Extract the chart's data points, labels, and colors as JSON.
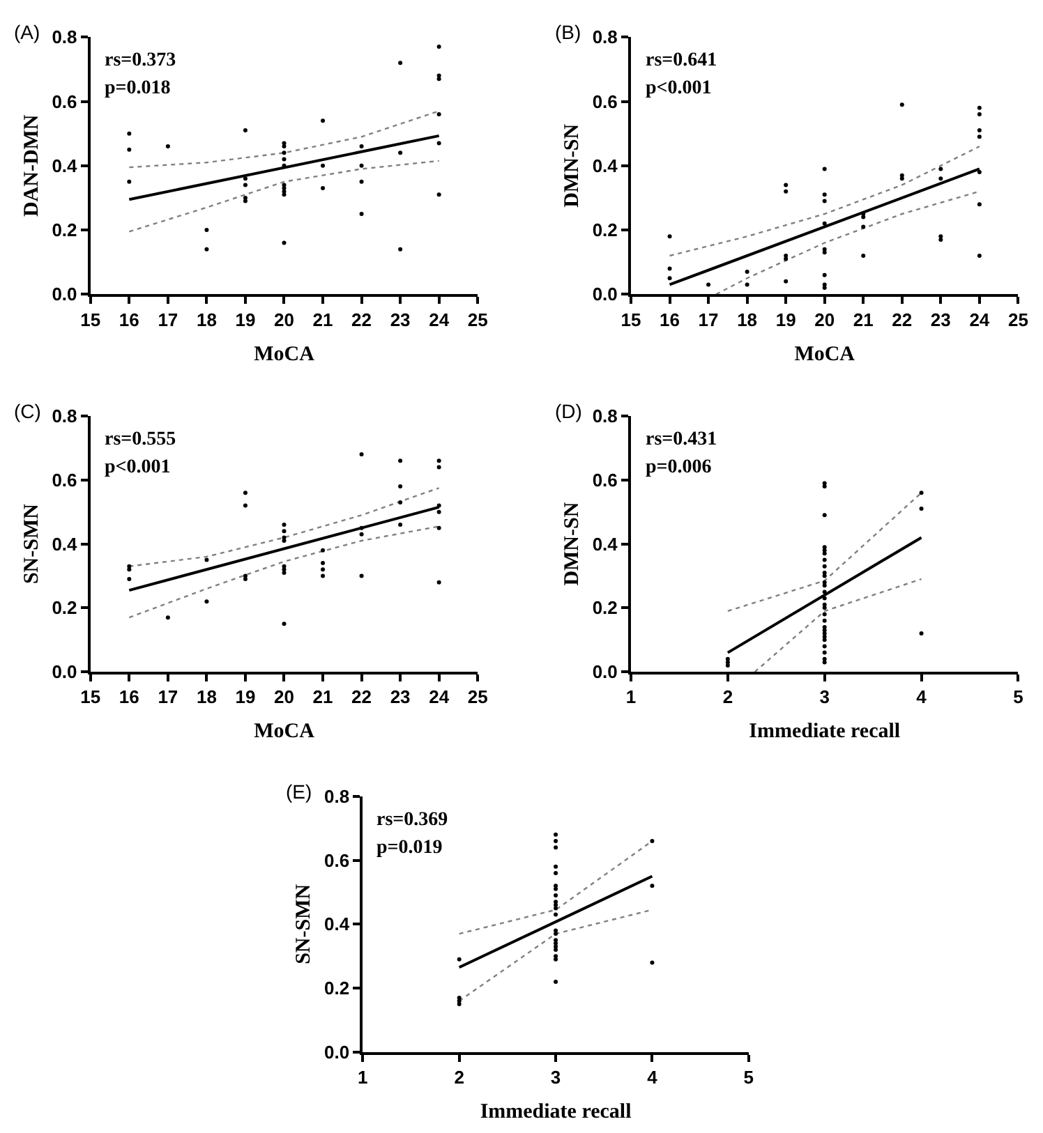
{
  "chart_data": [
    {
      "type": "scatter",
      "title": "(A)",
      "xlabel": "MoCA",
      "ylabel": "DAN-DMN",
      "annotations": [
        "rs=0.373",
        "p=0.018"
      ],
      "xlim": [
        15,
        25
      ],
      "xticks": [
        15,
        16,
        17,
        18,
        19,
        20,
        21,
        22,
        23,
        24,
        25
      ],
      "ylim": [
        0,
        0.8
      ],
      "yticks": [
        {
          "value": 0,
          "label": "0.0"
        },
        {
          "value": 0.2,
          "label": "0.2"
        },
        {
          "value": 0.4,
          "label": "0.4"
        },
        {
          "value": 0.6,
          "label": "0.6"
        },
        {
          "value": 0.8,
          "label": "0.8"
        }
      ],
      "marker": "circle",
      "series": [
        {
          "color": "#000000",
          "x": [
            16,
            16,
            16,
            17,
            18,
            18,
            19,
            19,
            19,
            19,
            19,
            20,
            20,
            20,
            20,
            20,
            20,
            20,
            20,
            20,
            20,
            21,
            21,
            21,
            22,
            22,
            22,
            22,
            23,
            23,
            23,
            24,
            24,
            24,
            24,
            24,
            24
          ],
          "values": [
            0.5,
            0.45,
            0.35,
            0.46,
            0.2,
            0.14,
            0.51,
            0.36,
            0.34,
            0.3,
            0.29,
            0.47,
            0.46,
            0.44,
            0.42,
            0.4,
            0.34,
            0.33,
            0.32,
            0.31,
            0.16,
            0.54,
            0.4,
            0.33,
            0.46,
            0.4,
            0.35,
            0.25,
            0.72,
            0.44,
            0.14,
            0.77,
            0.68,
            0.67,
            0.56,
            0.47,
            0.31
          ]
        },
        {
          "type": "line",
          "color": "#000000",
          "line_style": "solid",
          "marker": "none",
          "x": [
            16,
            24
          ],
          "values": [
            0.295,
            0.493
          ]
        },
        {
          "type": "line",
          "color": "#808080",
          "line_style": "dotted",
          "marker": "none",
          "x": [
            16,
            18,
            20,
            22,
            24
          ],
          "values": [
            0.195,
            0.27,
            0.35,
            0.39,
            0.415
          ]
        },
        {
          "type": "line",
          "color": "#808080",
          "line_style": "dotted",
          "marker": "none",
          "x": [
            16,
            18,
            20,
            22,
            24
          ],
          "values": [
            0.395,
            0.41,
            0.44,
            0.49,
            0.57
          ]
        }
      ]
    },
    {
      "type": "scatter",
      "title": "(B)",
      "xlabel": "MoCA",
      "ylabel": "DMN-SN",
      "annotations": [
        "rs=0.641",
        "p<0.001"
      ],
      "xlim": [
        15,
        25
      ],
      "xticks": [
        15,
        16,
        17,
        18,
        19,
        20,
        21,
        22,
        23,
        24,
        25
      ],
      "ylim": [
        0,
        0.8
      ],
      "yticks": [
        {
          "value": 0,
          "label": "0.0"
        },
        {
          "value": 0.2,
          "label": "0.2"
        },
        {
          "value": 0.4,
          "label": "0.4"
        },
        {
          "value": 0.6,
          "label": "0.6"
        },
        {
          "value": 0.8,
          "label": "0.8"
        }
      ],
      "marker": "circle",
      "series": [
        {
          "color": "#000000",
          "x": [
            16,
            16,
            16,
            17,
            18,
            18,
            19,
            19,
            19,
            19,
            19,
            20,
            20,
            20,
            20,
            20,
            20,
            20,
            20,
            20,
            21,
            21,
            21,
            21,
            22,
            22,
            22,
            23,
            23,
            23,
            23,
            24,
            24,
            24,
            24,
            24,
            24,
            24
          ],
          "values": [
            0.18,
            0.08,
            0.05,
            0.03,
            0.07,
            0.03,
            0.34,
            0.32,
            0.12,
            0.11,
            0.04,
            0.39,
            0.31,
            0.29,
            0.22,
            0.14,
            0.13,
            0.06,
            0.03,
            0.02,
            0.25,
            0.24,
            0.21,
            0.12,
            0.59,
            0.37,
            0.36,
            0.39,
            0.36,
            0.18,
            0.17,
            0.58,
            0.56,
            0.51,
            0.49,
            0.38,
            0.28,
            0.12
          ]
        },
        {
          "type": "line",
          "color": "#000000",
          "line_style": "solid",
          "marker": "none",
          "x": [
            16,
            24
          ],
          "values": [
            0.03,
            0.39
          ]
        },
        {
          "type": "line",
          "color": "#808080",
          "line_style": "dotted",
          "marker": "none",
          "x": [
            17.2,
            18,
            20,
            22,
            24
          ],
          "values": [
            0.0,
            0.05,
            0.16,
            0.25,
            0.32
          ]
        },
        {
          "type": "line",
          "color": "#808080",
          "line_style": "dotted",
          "marker": "none",
          "x": [
            16,
            18,
            20,
            22,
            24
          ],
          "values": [
            0.12,
            0.18,
            0.25,
            0.34,
            0.46
          ]
        }
      ]
    },
    {
      "type": "scatter",
      "title": "(C)",
      "xlabel": "MoCA",
      "ylabel": "SN-SMN",
      "annotations": [
        "rs=0.555",
        "p<0.001"
      ],
      "xlim": [
        15,
        25
      ],
      "xticks": [
        15,
        16,
        17,
        18,
        19,
        20,
        21,
        22,
        23,
        24,
        25
      ],
      "ylim": [
        0,
        0.8
      ],
      "yticks": [
        {
          "value": 0,
          "label": "0.0"
        },
        {
          "value": 0.2,
          "label": "0.2"
        },
        {
          "value": 0.4,
          "label": "0.4"
        },
        {
          "value": 0.6,
          "label": "0.6"
        },
        {
          "value": 0.8,
          "label": "0.8"
        }
      ],
      "marker": "circle",
      "series": [
        {
          "color": "#000000",
          "x": [
            16,
            16,
            16,
            17,
            18,
            18,
            19,
            19,
            19,
            19,
            20,
            20,
            20,
            20,
            20,
            20,
            20,
            20,
            21,
            21,
            21,
            21,
            22,
            22,
            22,
            22,
            23,
            23,
            23,
            23,
            24,
            24,
            24,
            24,
            24,
            24
          ],
          "values": [
            0.33,
            0.32,
            0.29,
            0.17,
            0.35,
            0.22,
            0.56,
            0.52,
            0.3,
            0.29,
            0.46,
            0.44,
            0.42,
            0.41,
            0.33,
            0.32,
            0.31,
            0.15,
            0.38,
            0.34,
            0.32,
            0.3,
            0.68,
            0.45,
            0.43,
            0.3,
            0.66,
            0.58,
            0.53,
            0.46,
            0.66,
            0.64,
            0.52,
            0.5,
            0.45,
            0.28
          ]
        },
        {
          "type": "line",
          "color": "#000000",
          "line_style": "solid",
          "marker": "none",
          "x": [
            16,
            24
          ],
          "values": [
            0.255,
            0.515
          ]
        },
        {
          "type": "line",
          "color": "#808080",
          "line_style": "dotted",
          "marker": "none",
          "x": [
            16,
            18,
            20,
            22,
            24
          ],
          "values": [
            0.17,
            0.26,
            0.345,
            0.41,
            0.455
          ]
        },
        {
          "type": "line",
          "color": "#808080",
          "line_style": "dotted",
          "marker": "none",
          "x": [
            16,
            18,
            20,
            22,
            24
          ],
          "values": [
            0.33,
            0.36,
            0.42,
            0.49,
            0.575
          ]
        }
      ]
    },
    {
      "type": "scatter",
      "title": "(D)",
      "xlabel": "Immediate recall",
      "ylabel": "DMN-SN",
      "annotations": [
        "rs=0.431",
        "p=0.006"
      ],
      "xlim": [
        1,
        5
      ],
      "xticks": [
        1,
        2,
        3,
        4,
        5
      ],
      "ylim": [
        0,
        0.8
      ],
      "yticks": [
        {
          "value": 0,
          "label": "0.0"
        },
        {
          "value": 0.2,
          "label": "0.2"
        },
        {
          "value": 0.4,
          "label": "0.4"
        },
        {
          "value": 0.6,
          "label": "0.6"
        },
        {
          "value": 0.8,
          "label": "0.8"
        }
      ],
      "marker": "circle",
      "series": [
        {
          "color": "#000000",
          "x": [
            2,
            2,
            2,
            3,
            3,
            3,
            3,
            3,
            3,
            3,
            3,
            3,
            3,
            3,
            3,
            3,
            3,
            3,
            3,
            3,
            3,
            3,
            3,
            3,
            3,
            3,
            3,
            3,
            3,
            3,
            4,
            4,
            4
          ],
          "values": [
            0.04,
            0.03,
            0.02,
            0.59,
            0.58,
            0.49,
            0.39,
            0.38,
            0.37,
            0.35,
            0.33,
            0.31,
            0.3,
            0.28,
            0.27,
            0.25,
            0.23,
            0.21,
            0.2,
            0.18,
            0.16,
            0.14,
            0.13,
            0.12,
            0.11,
            0.1,
            0.08,
            0.06,
            0.04,
            0.03,
            0.56,
            0.51,
            0.12
          ]
        },
        {
          "type": "line",
          "color": "#000000",
          "line_style": "solid",
          "marker": "none",
          "x": [
            2,
            4
          ],
          "values": [
            0.06,
            0.42
          ]
        },
        {
          "type": "line",
          "color": "#808080",
          "line_style": "dotted",
          "marker": "none",
          "x": [
            2.28,
            3,
            4
          ],
          "values": [
            0.0,
            0.19,
            0.29
          ]
        },
        {
          "type": "line",
          "color": "#808080",
          "line_style": "dotted",
          "marker": "none",
          "x": [
            2,
            3,
            4
          ],
          "values": [
            0.19,
            0.285,
            0.56
          ]
        }
      ]
    },
    {
      "type": "scatter",
      "title": "(E)",
      "xlabel": "Immediate recall",
      "ylabel": "SN-SMN",
      "annotations": [
        "rs=0.369",
        "p=0.019"
      ],
      "xlim": [
        1,
        5
      ],
      "xticks": [
        1,
        2,
        3,
        4,
        5
      ],
      "ylim": [
        0,
        0.8
      ],
      "yticks": [
        {
          "value": 0,
          "label": "0.0"
        },
        {
          "value": 0.2,
          "label": "0.2"
        },
        {
          "value": 0.4,
          "label": "0.4"
        },
        {
          "value": 0.6,
          "label": "0.6"
        },
        {
          "value": 0.8,
          "label": "0.8"
        }
      ],
      "marker": "circle",
      "series": [
        {
          "color": "#000000",
          "x": [
            2,
            2,
            2,
            2,
            3,
            3,
            3,
            3,
            3,
            3,
            3,
            3,
            3,
            3,
            3,
            3,
            3,
            3,
            3,
            3,
            3,
            3,
            3,
            3,
            3,
            4,
            4,
            4
          ],
          "values": [
            0.29,
            0.17,
            0.16,
            0.15,
            0.68,
            0.66,
            0.64,
            0.58,
            0.56,
            0.52,
            0.51,
            0.49,
            0.47,
            0.46,
            0.45,
            0.43,
            0.38,
            0.37,
            0.35,
            0.34,
            0.33,
            0.32,
            0.3,
            0.29,
            0.22,
            0.66,
            0.52,
            0.28
          ]
        },
        {
          "type": "line",
          "color": "#000000",
          "line_style": "solid",
          "marker": "none",
          "x": [
            2,
            4
          ],
          "values": [
            0.265,
            0.55
          ]
        },
        {
          "type": "line",
          "color": "#808080",
          "line_style": "dotted",
          "marker": "none",
          "x": [
            2,
            3,
            4
          ],
          "values": [
            0.16,
            0.37,
            0.445
          ]
        },
        {
          "type": "line",
          "color": "#808080",
          "line_style": "dotted",
          "marker": "none",
          "x": [
            2,
            3,
            4
          ],
          "values": [
            0.37,
            0.445,
            0.66
          ]
        }
      ]
    }
  ]
}
